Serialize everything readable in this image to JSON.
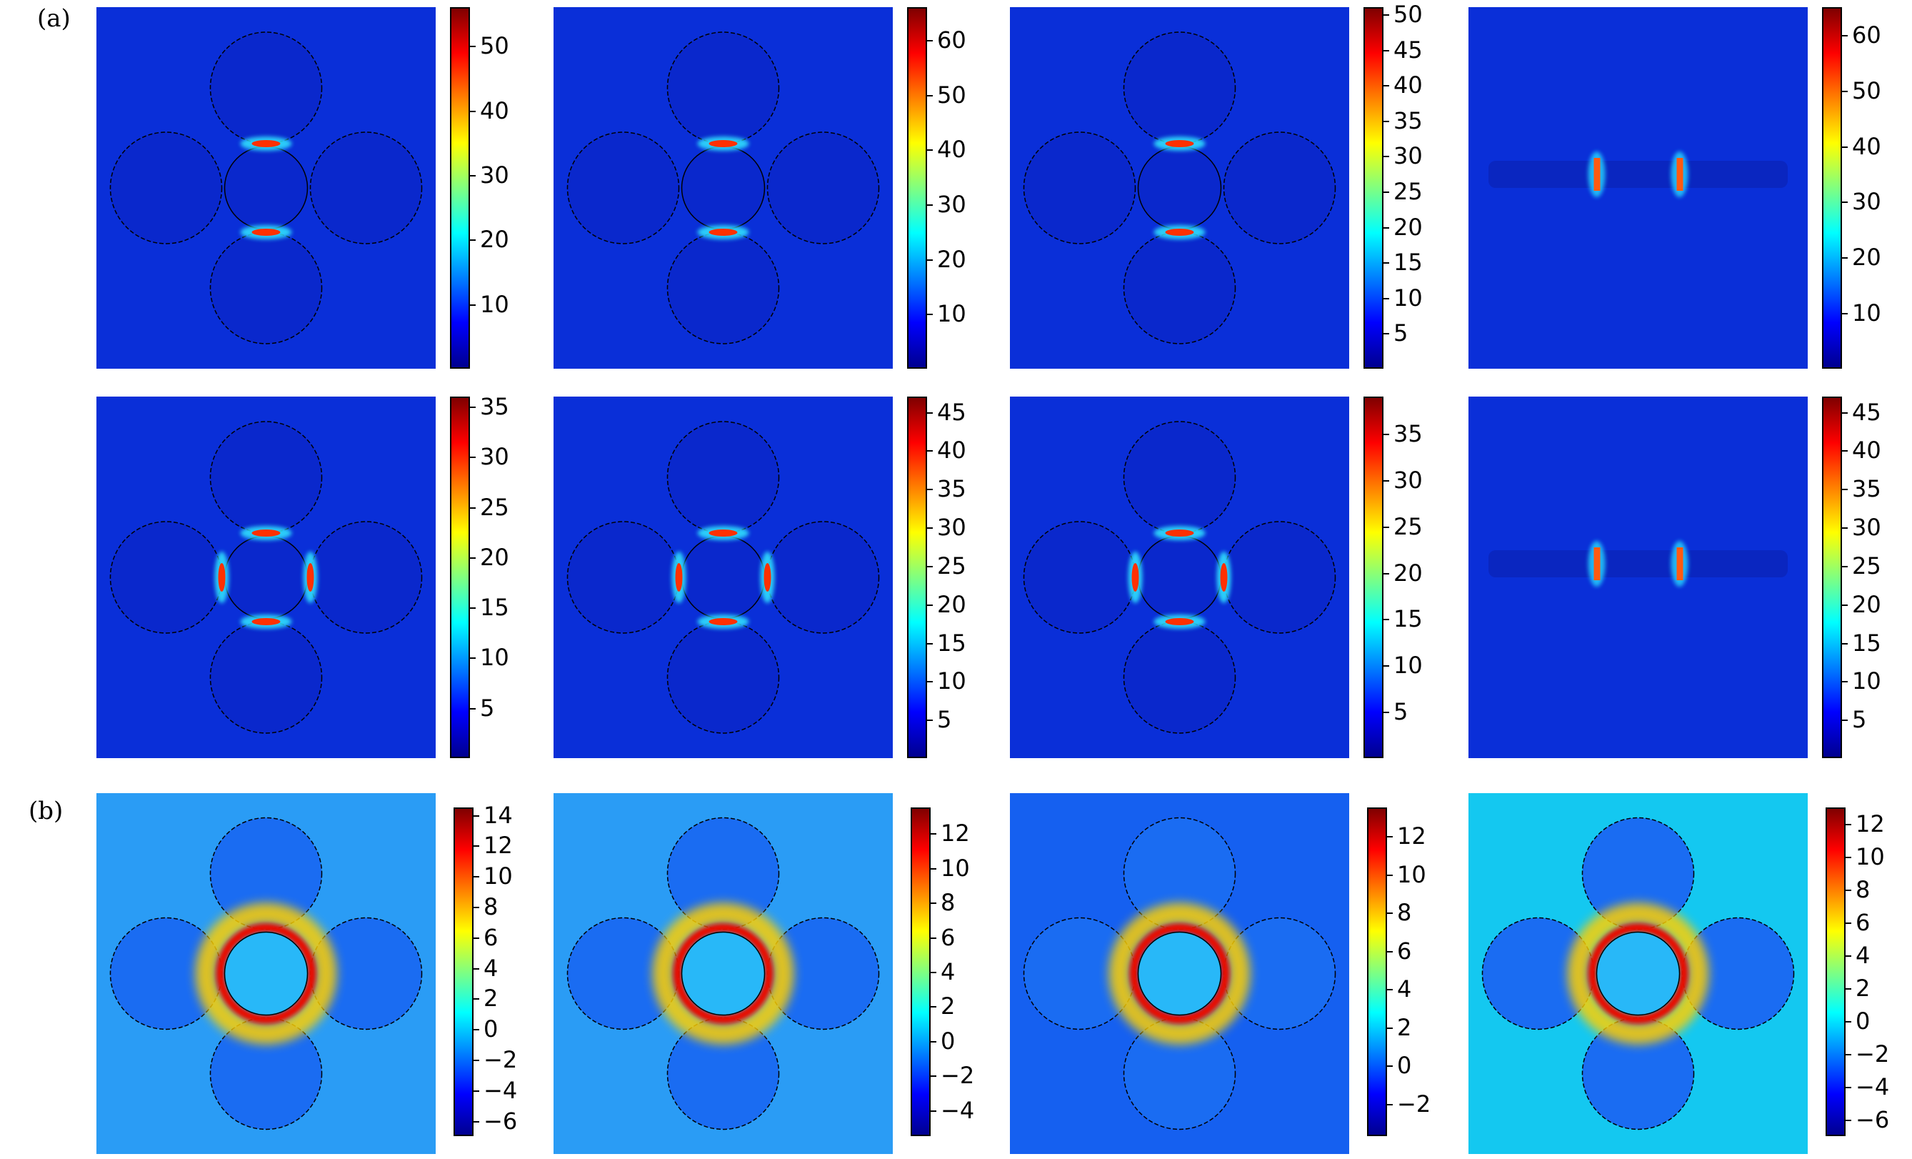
{
  "figure": {
    "labels": {
      "a": "(a)",
      "b": "(b)"
    },
    "colormap": [
      "#00008f",
      "#0000ff",
      "#0080ff",
      "#00ffff",
      "#80ff80",
      "#ffff00",
      "#ff8000",
      "#ff0000",
      "#800000"
    ]
  },
  "chart_data": [
    {
      "type": "heatmap",
      "panel": "(a)",
      "row": 1,
      "col": 1,
      "geometry": "four-dimers-center-disk",
      "hotspots": "vertical-pair",
      "colorbar": {
        "ticks": [
          "10",
          "20",
          "30",
          "40",
          "50"
        ],
        "tick_values": [
          10,
          20,
          30,
          40,
          50
        ],
        "range": [
          0,
          56
        ]
      }
    },
    {
      "type": "heatmap",
      "panel": "(a)",
      "row": 1,
      "col": 2,
      "geometry": "four-dimers-center-disk",
      "hotspots": "vertical-pair",
      "colorbar": {
        "ticks": [
          "10",
          "20",
          "30",
          "40",
          "50",
          "60"
        ],
        "tick_values": [
          10,
          20,
          30,
          40,
          50,
          60
        ],
        "range": [
          0,
          66
        ]
      }
    },
    {
      "type": "heatmap",
      "panel": "(a)",
      "row": 1,
      "col": 3,
      "geometry": "four-dimers-center-disk",
      "hotspots": "vertical-pair",
      "colorbar": {
        "ticks": [
          "5",
          "10",
          "15",
          "20",
          "25",
          "30",
          "35",
          "40",
          "45",
          "50"
        ],
        "tick_values": [
          5,
          10,
          15,
          20,
          25,
          30,
          35,
          40,
          45,
          50
        ],
        "range": [
          0,
          51
        ]
      }
    },
    {
      "type": "heatmap",
      "panel": "(a)",
      "row": 1,
      "col": 4,
      "geometry": "side-view-bar",
      "hotspots": "two-gaps",
      "colorbar": {
        "ticks": [
          "10",
          "20",
          "30",
          "40",
          "50",
          "60"
        ],
        "tick_values": [
          10,
          20,
          30,
          40,
          50,
          60
        ],
        "range": [
          0,
          65
        ]
      }
    },
    {
      "type": "heatmap",
      "panel": "(a)",
      "row": 2,
      "col": 1,
      "geometry": "four-dimers-center-disk",
      "hotspots": "four-around-ring",
      "colorbar": {
        "ticks": [
          "5",
          "10",
          "15",
          "20",
          "25",
          "30",
          "35"
        ],
        "tick_values": [
          5,
          10,
          15,
          20,
          25,
          30,
          35
        ],
        "range": [
          0,
          36
        ]
      }
    },
    {
      "type": "heatmap",
      "panel": "(a)",
      "row": 2,
      "col": 2,
      "geometry": "four-dimers-center-disk",
      "hotspots": "four-around-ring",
      "colorbar": {
        "ticks": [
          "5",
          "10",
          "15",
          "20",
          "25",
          "30",
          "35",
          "40",
          "45"
        ],
        "tick_values": [
          5,
          10,
          15,
          20,
          25,
          30,
          35,
          40,
          45
        ],
        "range": [
          0,
          47
        ]
      }
    },
    {
      "type": "heatmap",
      "panel": "(a)",
      "row": 2,
      "col": 3,
      "geometry": "four-dimers-center-disk",
      "hotspots": "four-around-ring",
      "colorbar": {
        "ticks": [
          "5",
          "10",
          "15",
          "20",
          "25",
          "30",
          "35"
        ],
        "tick_values": [
          5,
          10,
          15,
          20,
          25,
          30,
          35
        ],
        "range": [
          0,
          39
        ]
      }
    },
    {
      "type": "heatmap",
      "panel": "(a)",
      "row": 2,
      "col": 4,
      "geometry": "side-view-bar",
      "hotspots": "two-gaps",
      "colorbar": {
        "ticks": [
          "5",
          "10",
          "15",
          "20",
          "25",
          "30",
          "35",
          "40",
          "45"
        ],
        "tick_values": [
          5,
          10,
          15,
          20,
          25,
          30,
          35,
          40,
          45
        ],
        "range": [
          0,
          47
        ]
      }
    },
    {
      "type": "heatmap",
      "panel": "(b)",
      "row": 3,
      "col": 1,
      "geometry": "four-dimers-center-disk",
      "hotspots": "log-field",
      "colorbar": {
        "ticks": [
          "14",
          "12",
          "10",
          "8",
          "6",
          "4",
          "2",
          "0",
          "−2",
          "−4",
          "−6"
        ],
        "tick_values": [
          14,
          12,
          10,
          8,
          6,
          4,
          2,
          0,
          -2,
          -4,
          -6
        ],
        "range": [
          -7,
          14.5
        ]
      }
    },
    {
      "type": "heatmap",
      "panel": "(b)",
      "row": 3,
      "col": 2,
      "geometry": "four-dimers-center-disk",
      "hotspots": "log-field",
      "colorbar": {
        "ticks": [
          "12",
          "10",
          "8",
          "6",
          "4",
          "2",
          "0",
          "−2",
          "−4"
        ],
        "tick_values": [
          12,
          10,
          8,
          6,
          4,
          2,
          0,
          -2,
          -4
        ],
        "range": [
          -5.5,
          13.5
        ]
      }
    },
    {
      "type": "heatmap",
      "panel": "(b)",
      "row": 3,
      "col": 3,
      "geometry": "four-dimers-center-disk",
      "hotspots": "log-field",
      "colorbar": {
        "ticks": [
          "12",
          "10",
          "8",
          "6",
          "4",
          "2",
          "0",
          "−2"
        ],
        "tick_values": [
          12,
          10,
          8,
          6,
          4,
          2,
          0,
          -2
        ],
        "range": [
          -3.7,
          13.5
        ]
      }
    },
    {
      "type": "heatmap",
      "panel": "(b)",
      "row": 3,
      "col": 4,
      "geometry": "four-dimers-center-disk",
      "hotspots": "log-field",
      "colorbar": {
        "ticks": [
          "12",
          "10",
          "8",
          "6",
          "4",
          "2",
          "0",
          "−2",
          "−4",
          "−6"
        ],
        "tick_values": [
          12,
          10,
          8,
          6,
          4,
          2,
          0,
          -2,
          -4,
          -6
        ],
        "range": [
          -7,
          13
        ]
      }
    }
  ]
}
